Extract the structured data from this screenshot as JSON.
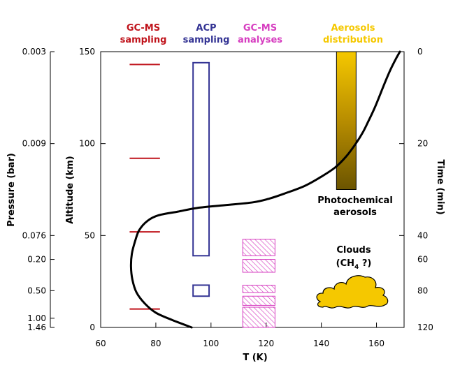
{
  "colors": {
    "gcms_sampling": "#c0141c",
    "acp_sampling": "#343494",
    "gcms_analyses": "#d63ec0",
    "aerosols": "#f5c800",
    "profile": "#000000"
  },
  "headers": {
    "gcms_sampling": [
      "GC-MS",
      "sampling"
    ],
    "acp_sampling": [
      "ACP",
      "sampling"
    ],
    "gcms_analyses": [
      "GC-MS",
      "analyses"
    ],
    "aerosols": [
      "Aerosols",
      "distribution"
    ]
  },
  "labels": {
    "photochemical": [
      "Photochemical",
      "aerosols"
    ],
    "clouds_line1": "Clouds",
    "clouds_line2_prefix": "(CH",
    "clouds_line2_sub": "4",
    "clouds_line2_suffix": " ?)"
  },
  "axes": {
    "x_label": "T (K)",
    "altitude_label": "Altitude (km)",
    "pressure_label": "Pressure (bar)",
    "time_label": "Time (min)",
    "x_ticks": [
      "60",
      "80",
      "100",
      "120",
      "140",
      "160"
    ],
    "altitude_ticks": [
      "0",
      "50",
      "100",
      "150"
    ],
    "pressure_ticks": [
      "0.003",
      "0.009",
      "0.076",
      "0.20",
      "0.50",
      "1.00",
      "1.46"
    ],
    "time_ticks": [
      "0",
      "20",
      "40",
      "60",
      "80",
      "120"
    ]
  },
  "chart_data": {
    "type": "line",
    "x_range": [
      60,
      170
    ],
    "y_range": [
      0,
      150
    ],
    "temperature_profile": [
      [
        93,
        0
      ],
      [
        86,
        4
      ],
      [
        80,
        8
      ],
      [
        76,
        13
      ],
      [
        73,
        19
      ],
      [
        71.5,
        26
      ],
      [
        71,
        33
      ],
      [
        71.3,
        40
      ],
      [
        72.5,
        47
      ],
      [
        74,
        53
      ],
      [
        77,
        58
      ],
      [
        81,
        61
      ],
      [
        88,
        63
      ],
      [
        95,
        65
      ],
      [
        105,
        66.5
      ],
      [
        115,
        68
      ],
      [
        121,
        70
      ],
      [
        127,
        73
      ],
      [
        134,
        77
      ],
      [
        140,
        82
      ],
      [
        145,
        87
      ],
      [
        149,
        93
      ],
      [
        152.5,
        100
      ],
      [
        155,
        106
      ],
      [
        157,
        112
      ],
      [
        159.5,
        120
      ],
      [
        163,
        133
      ],
      [
        165,
        140
      ],
      [
        167,
        146
      ],
      [
        168.5,
        150
      ]
    ],
    "gcms_sampling_altitudes": [
      143,
      92,
      52,
      10
    ],
    "acp_sampling_ranges": [
      [
        39,
        144
      ],
      [
        17,
        23
      ]
    ],
    "gcms_analyses_ranges": [
      [
        39,
        48
      ],
      [
        30,
        37
      ],
      [
        19,
        23
      ],
      [
        12,
        17
      ],
      [
        0,
        11
      ]
    ],
    "aerosols_range": [
      75,
      150
    ]
  }
}
